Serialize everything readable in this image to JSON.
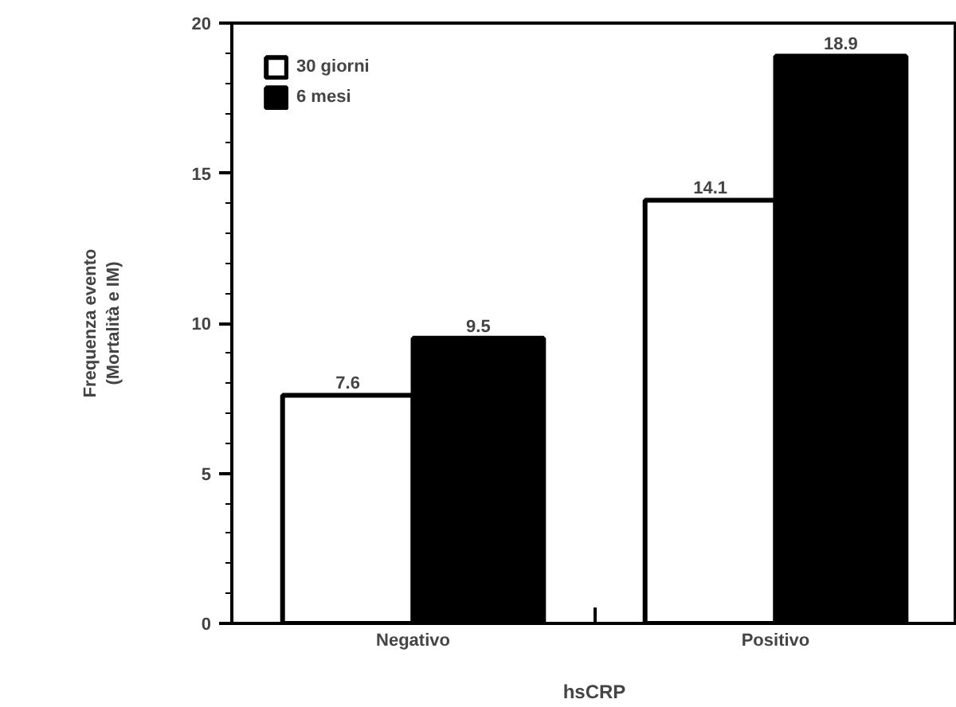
{
  "chart_data": {
    "type": "bar",
    "xlabel": "hsCRP",
    "ylabel": "Frequenza evento\n(Mortalità e IM)",
    "categories": [
      "Negativo",
      "Positivo"
    ],
    "series": [
      {
        "name": "30 giorni",
        "color": "#ffffff",
        "values": [
          7.6,
          14.1
        ]
      },
      {
        "name": "6 mesi",
        "color": "#000000",
        "values": [
          9.5,
          18.9
        ]
      }
    ],
    "ylim": [
      0,
      20
    ],
    "yticks": [
      0,
      5,
      10,
      15,
      20
    ],
    "grid": false,
    "legend": "top left",
    "data_labels": true
  }
}
